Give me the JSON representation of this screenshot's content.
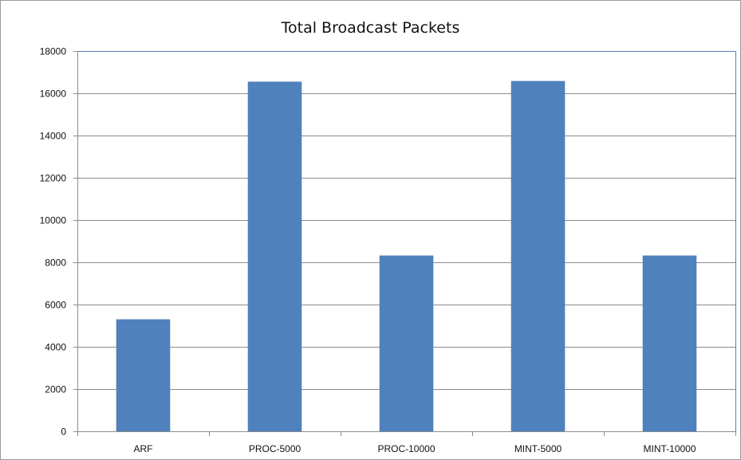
{
  "chart_data": {
    "type": "bar",
    "title": "Total Broadcast Packets",
    "xlabel": "",
    "ylabel": "",
    "categories": [
      "ARF",
      "PROC-5000",
      "PROC-10000",
      "MINT-5000",
      "MINT-10000"
    ],
    "values": [
      5300,
      16550,
      8320,
      16580,
      8320
    ],
    "ylim": [
      0,
      18000
    ],
    "yticks": [
      "0",
      "2000",
      "4000",
      "6000",
      "8000",
      "10000",
      "12000",
      "14000",
      "16000",
      "18000"
    ],
    "grid": true,
    "legend": "none",
    "colors": {
      "bar": "#4f81bd",
      "gridline": "#8c8c8c",
      "plot_border": "#4f81bd",
      "axis": "#8c8c8c"
    }
  }
}
